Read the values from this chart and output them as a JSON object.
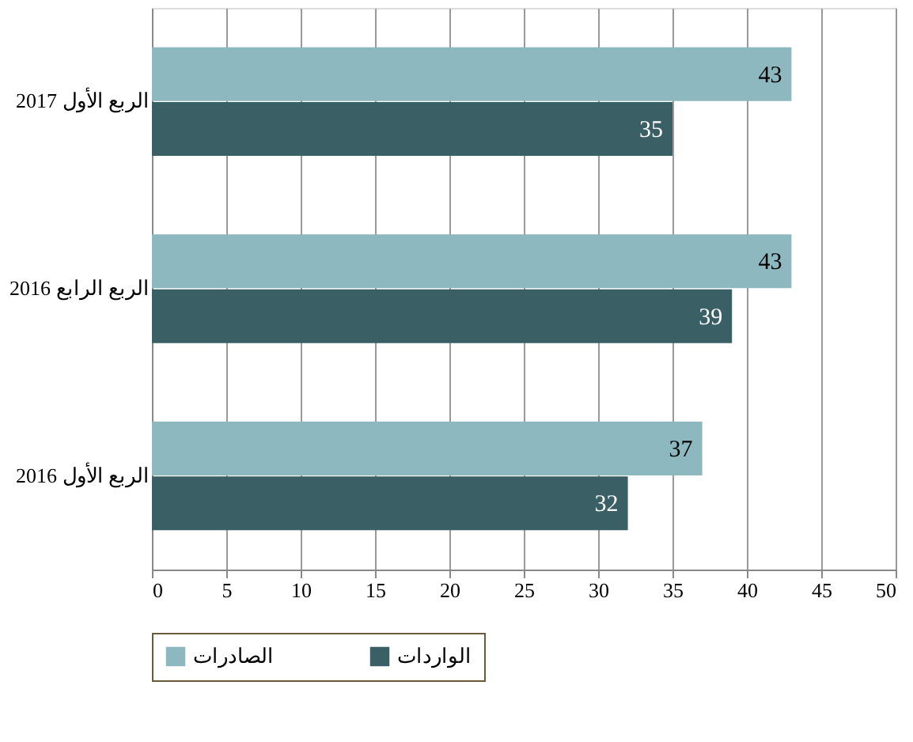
{
  "chart_data": {
    "type": "bar",
    "orientation": "horizontal",
    "categories": [
      "الربع الأول 2017",
      "الربع الرابع 2016",
      "الربع الأول 2016"
    ],
    "series": [
      {
        "name": "الصادرات",
        "color": "#8db8bf",
        "values": [
          43,
          43,
          37
        ]
      },
      {
        "name": "الواردات",
        "color": "#3a6066",
        "values": [
          35,
          39,
          32
        ]
      }
    ],
    "xlim": [
      0,
      50
    ],
    "xticks": [
      0,
      5,
      10,
      15,
      20,
      25,
      30,
      35,
      40,
      45,
      50
    ],
    "grid": "x",
    "legend": "bottom",
    "data_labels": true
  }
}
